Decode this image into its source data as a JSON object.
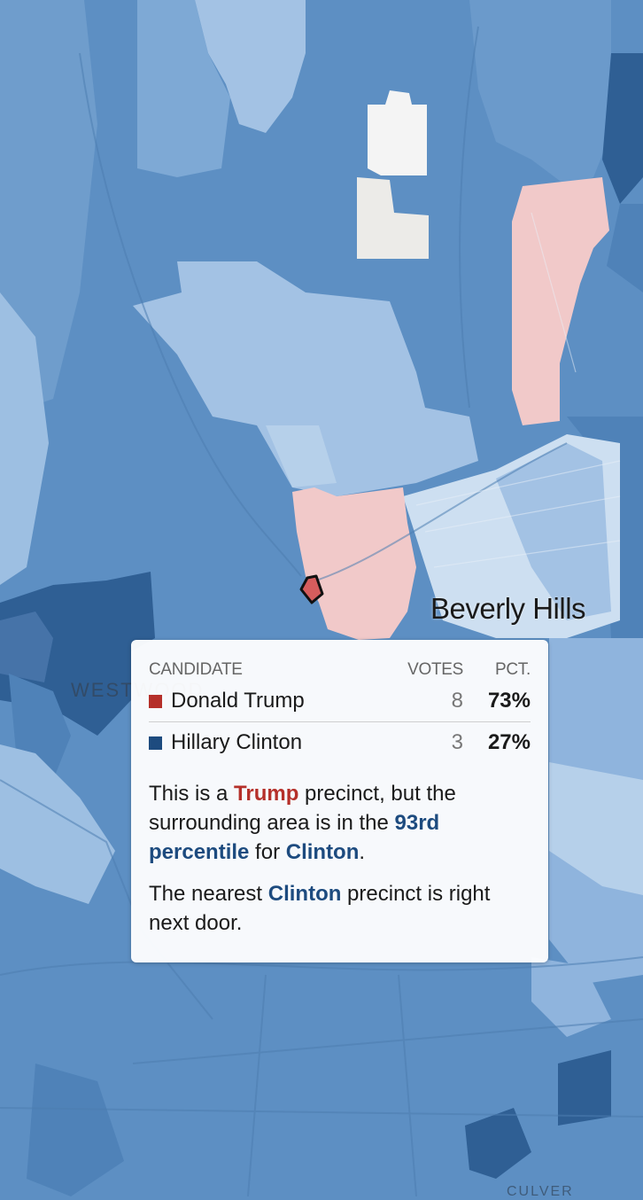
{
  "map": {
    "place_labels": {
      "beverly_hills": "Beverly Hills",
      "westwood": "WESTWOOD",
      "culver": "CULVER"
    },
    "colors": {
      "clinton_dark": "#2f5f94",
      "clinton_mid": "#5d8fc3",
      "clinton_light": "#a3c2e4",
      "clinton_lightest": "#cddff1",
      "trump_light": "#f1c9c9",
      "trump_selected": "#d55d5d",
      "no_data": "#f2f2f2"
    }
  },
  "tooltip": {
    "headers": {
      "candidate": "CANDIDATE",
      "votes": "VOTES",
      "pct": "PCT."
    },
    "rows": [
      {
        "name": "Donald Trump",
        "votes": "8",
        "pct": "73%",
        "color": "#b5302a"
      },
      {
        "name": "Hillary Clinton",
        "votes": "3",
        "pct": "27%",
        "color": "#1d4b7f"
      }
    ],
    "paragraph1": {
      "t1": "This is a ",
      "trump": "Trump",
      "t2": " precinct, but the surrounding area is in the ",
      "percentile": "93rd percentile",
      "t3": " for ",
      "clinton": "Clinton",
      "t4": "."
    },
    "paragraph2": {
      "t1": "The nearest ",
      "clinton": "Clinton",
      "t2": " precinct is right next door."
    }
  }
}
